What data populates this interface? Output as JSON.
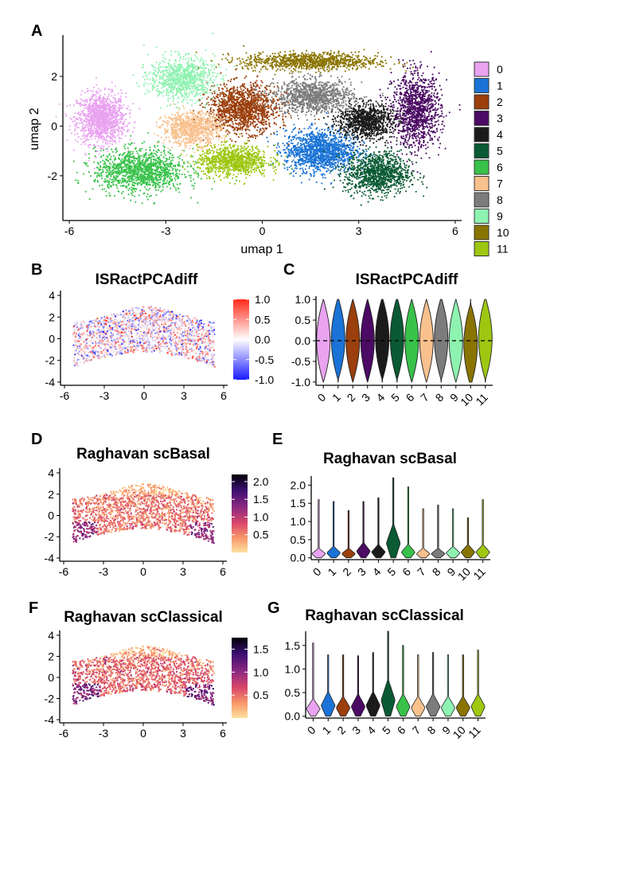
{
  "panels": {
    "A": "A",
    "B": "B",
    "C": "C",
    "D": "D",
    "E": "E",
    "F": "F",
    "G": "G"
  },
  "colors": {
    "axis": "#000000",
    "diverging_scale": [
      "#1a1aff",
      "#ffffff",
      "#ff2a1a"
    ],
    "magma_scale": [
      "#fde2a0",
      "#f89a6a",
      "#d9466a",
      "#8c2981",
      "#3b0f70",
      "#000004"
    ]
  },
  "cluster_palette": [
    {
      "label": "0",
      "color": "#e9a3f0"
    },
    {
      "label": "1",
      "color": "#1a73d6"
    },
    {
      "label": "2",
      "color": "#9b3f0c"
    },
    {
      "label": "3",
      "color": "#4b0a63"
    },
    {
      "label": "4",
      "color": "#1b1b1b"
    },
    {
      "label": "5",
      "color": "#0a5a33"
    },
    {
      "label": "6",
      "color": "#38c24a"
    },
    {
      "label": "7",
      "color": "#f8c18d"
    },
    {
      "label": "8",
      "color": "#7c7c7c"
    },
    {
      "label": "9",
      "color": "#8ef2b0"
    },
    {
      "label": "10",
      "color": "#8a7400"
    },
    {
      "label": "11",
      "color": "#9dc711"
    }
  ],
  "chart_data": [
    {
      "panel": "A",
      "type": "scatter",
      "title": "",
      "xlabel": "umap 1",
      "ylabel": "umap 2",
      "xlim": [
        -6.2,
        6.2
      ],
      "ylim": [
        -3.8,
        3.6
      ],
      "xticks": [
        -6,
        -3,
        0,
        3,
        6
      ],
      "yticks": [
        -2,
        0,
        2
      ],
      "legend_position": "right",
      "legend_entries": [
        "0",
        "1",
        "2",
        "3",
        "4",
        "5",
        "6",
        "7",
        "8",
        "9",
        "10",
        "11"
      ],
      "clusters": [
        {
          "name": "0",
          "center": [
            -5.0,
            0.3
          ],
          "spread": [
            0.75,
            1.0
          ],
          "n": 1300
        },
        {
          "name": "1",
          "center": [
            1.8,
            -1.0
          ],
          "spread": [
            1.1,
            0.85
          ],
          "n": 1400
        },
        {
          "name": "2",
          "center": [
            -0.6,
            0.7
          ],
          "spread": [
            1.1,
            0.95
          ],
          "n": 1400
        },
        {
          "name": "3",
          "center": [
            4.8,
            0.6
          ],
          "spread": [
            0.75,
            1.45
          ],
          "n": 1200
        },
        {
          "name": "4",
          "center": [
            3.2,
            0.2
          ],
          "spread": [
            0.85,
            0.7
          ],
          "n": 1000
        },
        {
          "name": "5",
          "center": [
            3.6,
            -1.9
          ],
          "spread": [
            1.0,
            0.85
          ],
          "n": 1100
        },
        {
          "name": "6",
          "center": [
            -3.8,
            -1.8
          ],
          "spread": [
            1.4,
            0.85
          ],
          "n": 1300
        },
        {
          "name": "7",
          "center": [
            -2.2,
            -0.1
          ],
          "spread": [
            0.9,
            0.65
          ],
          "n": 900
        },
        {
          "name": "8",
          "center": [
            1.6,
            1.2
          ],
          "spread": [
            1.2,
            0.65
          ],
          "n": 1100
        },
        {
          "name": "9",
          "center": [
            -2.5,
            1.9
          ],
          "spread": [
            1.0,
            0.85
          ],
          "n": 900
        },
        {
          "name": "10",
          "center": [
            1.5,
            2.6
          ],
          "spread": [
            2.1,
            0.35
          ],
          "n": 1000
        },
        {
          "name": "11",
          "center": [
            -0.9,
            -1.4
          ],
          "spread": [
            1.1,
            0.6
          ],
          "n": 1000
        }
      ]
    },
    {
      "panel": "B",
      "type": "scatter",
      "title": "ISRactPCAdiff",
      "xlim": [
        -6.3,
        6.3
      ],
      "ylim": [
        -4.3,
        4.3
      ],
      "xticks": [
        -6,
        -3,
        0,
        3,
        6
      ],
      "yticks": [
        -4,
        -2,
        0,
        2,
        4
      ],
      "colorbar": {
        "ticks": [
          "1.0",
          "0.5",
          "0.0",
          "-0.5",
          "-1.0"
        ],
        "range": [
          -1.0,
          1.0
        ],
        "scale": "diverging"
      }
    },
    {
      "panel": "C",
      "type": "violin",
      "title": "ISRactPCAdiff",
      "categories": [
        "0",
        "1",
        "2",
        "3",
        "4",
        "5",
        "6",
        "7",
        "8",
        "9",
        "10",
        "11"
      ],
      "ylim": [
        -1.08,
        1.08
      ],
      "yticks": [
        "1.0",
        "0.5",
        "0.0",
        "-0.5",
        "-1.0"
      ],
      "ytick_values": [
        1.0,
        0.5,
        0.0,
        -0.5,
        -1.0
      ],
      "reference_line": 0.0,
      "range": [
        [
          -1.0,
          1.0
        ]
      ],
      "median_approx": [
        0.0,
        0.05,
        0.0,
        0.0,
        0.05,
        0.05,
        0.0,
        0.0,
        0.05,
        0.0,
        -0.1,
        0.05
      ]
    },
    {
      "panel": "D",
      "type": "scatter",
      "title": "Raghavan scBasal",
      "xlim": [
        -6.3,
        6.3
      ],
      "ylim": [
        -4.3,
        4.3
      ],
      "xticks": [
        -6,
        -3,
        0,
        3,
        6
      ],
      "yticks": [
        -4,
        -2,
        0,
        2,
        4
      ],
      "colorbar": {
        "ticks": [
          "2.0",
          "1.5",
          "1.0",
          "0.5"
        ],
        "range": [
          0.0,
          2.2
        ],
        "scale": "magma"
      }
    },
    {
      "panel": "E",
      "type": "violin",
      "title": "Raghavan scBasal",
      "categories": [
        "0",
        "1",
        "2",
        "3",
        "4",
        "5",
        "6",
        "7",
        "8",
        "9",
        "10",
        "11"
      ],
      "ylim": [
        -0.05,
        2.25
      ],
      "yticks": [
        "2.0",
        "1.5",
        "1.0",
        "0.5",
        "0.0"
      ],
      "ytick_values": [
        2.0,
        1.5,
        1.0,
        0.5,
        0.0
      ],
      "max_values": [
        1.6,
        1.55,
        1.3,
        1.55,
        1.65,
        2.2,
        1.95,
        1.35,
        1.45,
        1.35,
        1.1,
        1.6
      ],
      "body_height": [
        0.25,
        0.3,
        0.25,
        0.4,
        0.35,
        0.9,
        0.35,
        0.25,
        0.25,
        0.3,
        0.35,
        0.35
      ]
    },
    {
      "panel": "F",
      "type": "scatter",
      "title": "Raghavan scClassical",
      "xlim": [
        -6.3,
        6.3
      ],
      "ylim": [
        -4.3,
        4.3
      ],
      "xticks": [
        -6,
        -3,
        0,
        3,
        6
      ],
      "yticks": [
        -4,
        -2,
        0,
        2,
        4
      ],
      "colorbar": {
        "ticks": [
          "1.5",
          "1.0",
          "0.5"
        ],
        "range": [
          0.0,
          1.75
        ],
        "scale": "magma"
      }
    },
    {
      "panel": "G",
      "type": "violin",
      "title": "Raghavan scClassical",
      "categories": [
        "0",
        "1",
        "2",
        "3",
        "4",
        "5",
        "6",
        "7",
        "8",
        "9",
        "10",
        "11"
      ],
      "ylim": [
        -0.04,
        1.8
      ],
      "yticks": [
        "1.5",
        "1.0",
        "0.5",
        "0.0"
      ],
      "ytick_values": [
        1.5,
        1.0,
        0.5,
        0.0
      ],
      "max_values": [
        1.55,
        1.3,
        1.3,
        1.28,
        1.35,
        1.8,
        1.5,
        1.3,
        1.35,
        1.3,
        1.3,
        1.4
      ],
      "body_height": [
        0.35,
        0.5,
        0.4,
        0.45,
        0.5,
        0.75,
        0.45,
        0.4,
        0.45,
        0.4,
        0.4,
        0.45
      ]
    }
  ]
}
